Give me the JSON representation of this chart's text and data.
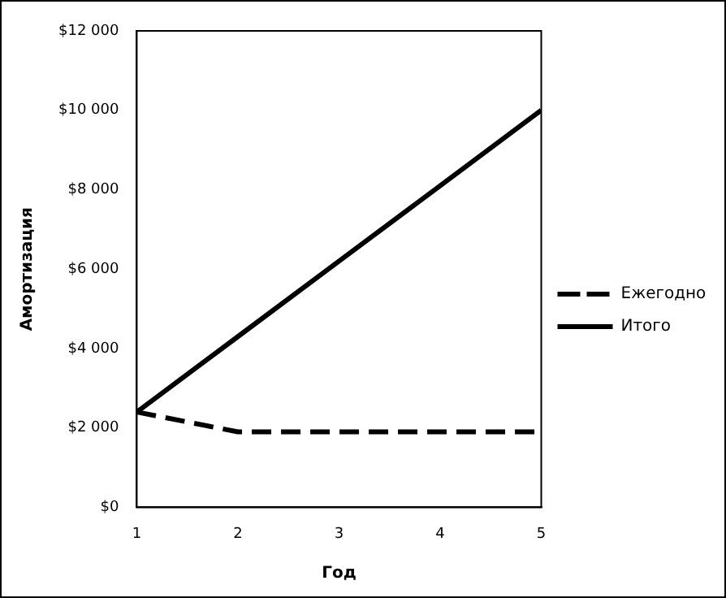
{
  "chart_data": {
    "type": "line",
    "xlabel": "Год",
    "ylabel": "Амортизация",
    "x": [
      1,
      2,
      3,
      4,
      5
    ],
    "xlim": [
      1,
      5
    ],
    "xticks": [
      1,
      2,
      3,
      4,
      5
    ],
    "ylim": [
      0,
      12000
    ],
    "yticks": [
      {
        "value": 0,
        "label": "$0"
      },
      {
        "value": 2000,
        "label": "$2 000"
      },
      {
        "value": 4000,
        "label": "$4 000"
      },
      {
        "value": 6000,
        "label": "$6 000"
      },
      {
        "value": 8000,
        "label": "$8 000"
      },
      {
        "value": 10000,
        "label": "$10 000"
      },
      {
        "value": 12000,
        "label": "$12 000"
      }
    ],
    "series": [
      {
        "name": "Ежегодно",
        "color": "#000000",
        "line_style": "dashed",
        "values": [
          2400,
          1900,
          1900,
          1900,
          1900
        ]
      },
      {
        "name": "Итого",
        "color": "#000000",
        "line_style": "solid",
        "values": [
          2400,
          4300,
          6200,
          8100,
          10000
        ]
      }
    ],
    "grid": false,
    "legend": "right",
    "marker": "none"
  }
}
